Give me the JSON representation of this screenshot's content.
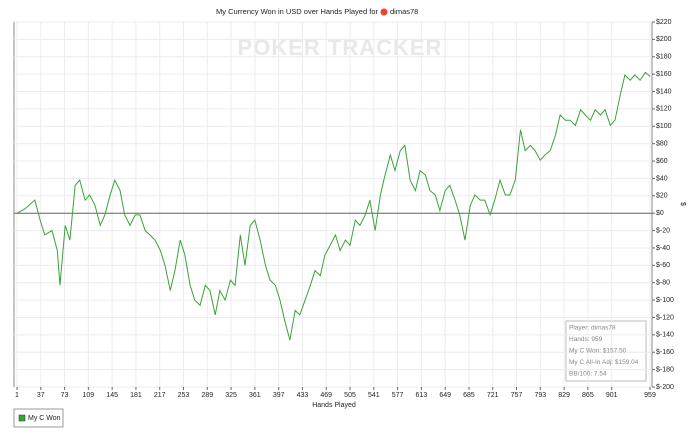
{
  "chart_data": {
    "type": "line",
    "title": "My Currency Won in USD over Hands Played for",
    "title_player": "dimas78",
    "watermark": "POKER TRACKER",
    "x_label": "Hands Played",
    "y_label": "$",
    "xlim": [
      1,
      959
    ],
    "xticks": [
      1,
      37,
      73,
      109,
      145,
      181,
      217,
      253,
      289,
      325,
      361,
      397,
      433,
      469,
      505,
      541,
      577,
      613,
      649,
      685,
      721,
      757,
      793,
      829,
      865,
      901,
      959
    ],
    "ylim": [
      -200,
      220
    ],
    "yticks": [
      {
        "value": -200,
        "label": "$-200"
      },
      {
        "value": -180,
        "label": "$-180"
      },
      {
        "value": -160,
        "label": "$-160"
      },
      {
        "value": -140,
        "label": "$-140"
      },
      {
        "value": -120,
        "label": "$-120"
      },
      {
        "value": -100,
        "label": "$-100"
      },
      {
        "value": -80,
        "label": "$-80"
      },
      {
        "value": -60,
        "label": "$-60"
      },
      {
        "value": -40,
        "label": "$-40"
      },
      {
        "value": -20,
        "label": "$-20"
      },
      {
        "value": 0,
        "label": "$0"
      },
      {
        "value": 20,
        "label": "$20"
      },
      {
        "value": 40,
        "label": "$40"
      },
      {
        "value": 60,
        "label": "$60"
      },
      {
        "value": 80,
        "label": "$80"
      },
      {
        "value": 100,
        "label": "$100"
      },
      {
        "value": 120,
        "label": "$120"
      },
      {
        "value": 140,
        "label": "$140"
      },
      {
        "value": 160,
        "label": "$160"
      },
      {
        "value": 180,
        "label": "$180"
      },
      {
        "value": 200,
        "label": "$200"
      },
      {
        "value": 220,
        "label": "$220"
      }
    ],
    "grid": true,
    "x": [
      1,
      13,
      28,
      36,
      43,
      54,
      62,
      66,
      74,
      81,
      89,
      96,
      104,
      111,
      119,
      127,
      134,
      142,
      149,
      157,
      164,
      172,
      180,
      187,
      195,
      202,
      210,
      218,
      225,
      233,
      240,
      248,
      255,
      263,
      270,
      278,
      286,
      293,
      301,
      308,
      316,
      324,
      331,
      339,
      346,
      354,
      361,
      369,
      377,
      384,
      392,
      399,
      406,
      414,
      422,
      429,
      437,
      445,
      452,
      460,
      467,
      475,
      483,
      490,
      498,
      505,
      513,
      520,
      528,
      535,
      543,
      551,
      558,
      566,
      573,
      581,
      588,
      596,
      604,
      611,
      619,
      626,
      634,
      641,
      649,
      656,
      664,
      671,
      679,
      687,
      694,
      702,
      709,
      717,
      724,
      732,
      740,
      747,
      755,
      763,
      770,
      778,
      785,
      793,
      800,
      808,
      816,
      823,
      831,
      838,
      846,
      854,
      861,
      869,
      876,
      884,
      891,
      899,
      906,
      914,
      921,
      929,
      936,
      944,
      952,
      959
    ],
    "series": [
      {
        "name": "My C Won",
        "color": "#3aa23a",
        "values": [
          0,
          5,
          15,
          -8,
          -25,
          -20,
          -43,
          -83,
          -14,
          -31,
          32,
          38,
          15,
          21,
          9,
          -14,
          -2,
          21,
          38,
          26,
          -2,
          -14,
          -2,
          -2,
          -20,
          -25,
          -31,
          -43,
          -60,
          -89,
          -66,
          -31,
          -48,
          -83,
          -100,
          -106,
          -83,
          -89,
          -117,
          -89,
          -100,
          -77,
          -83,
          -25,
          -60,
          -14,
          -8,
          -31,
          -60,
          -77,
          -83,
          -100,
          -123,
          -146,
          -112,
          -117,
          -100,
          -83,
          -66,
          -72,
          -48,
          -37,
          -25,
          -43,
          -31,
          -37,
          -8,
          -14,
          -2,
          15,
          -20,
          21,
          44,
          67,
          49,
          72,
          78,
          38,
          26,
          49,
          44,
          26,
          21,
          3,
          26,
          32,
          15,
          -2,
          -31,
          9,
          21,
          15,
          15,
          -2,
          15,
          38,
          21,
          21,
          38,
          96,
          72,
          78,
          72,
          61,
          67,
          72,
          90,
          113,
          107,
          107,
          101,
          119,
          113,
          107,
          119,
          113,
          119,
          101,
          107,
          136,
          159,
          153,
          159,
          153,
          162,
          157.5
        ]
      }
    ],
    "legend": "bottom-left",
    "info_box": [
      "Player: dimas78",
      "Hands: 959",
      "My C Won: $157.50",
      "My C All-In Adj: $159.04",
      "BB/100: 7.54"
    ]
  }
}
